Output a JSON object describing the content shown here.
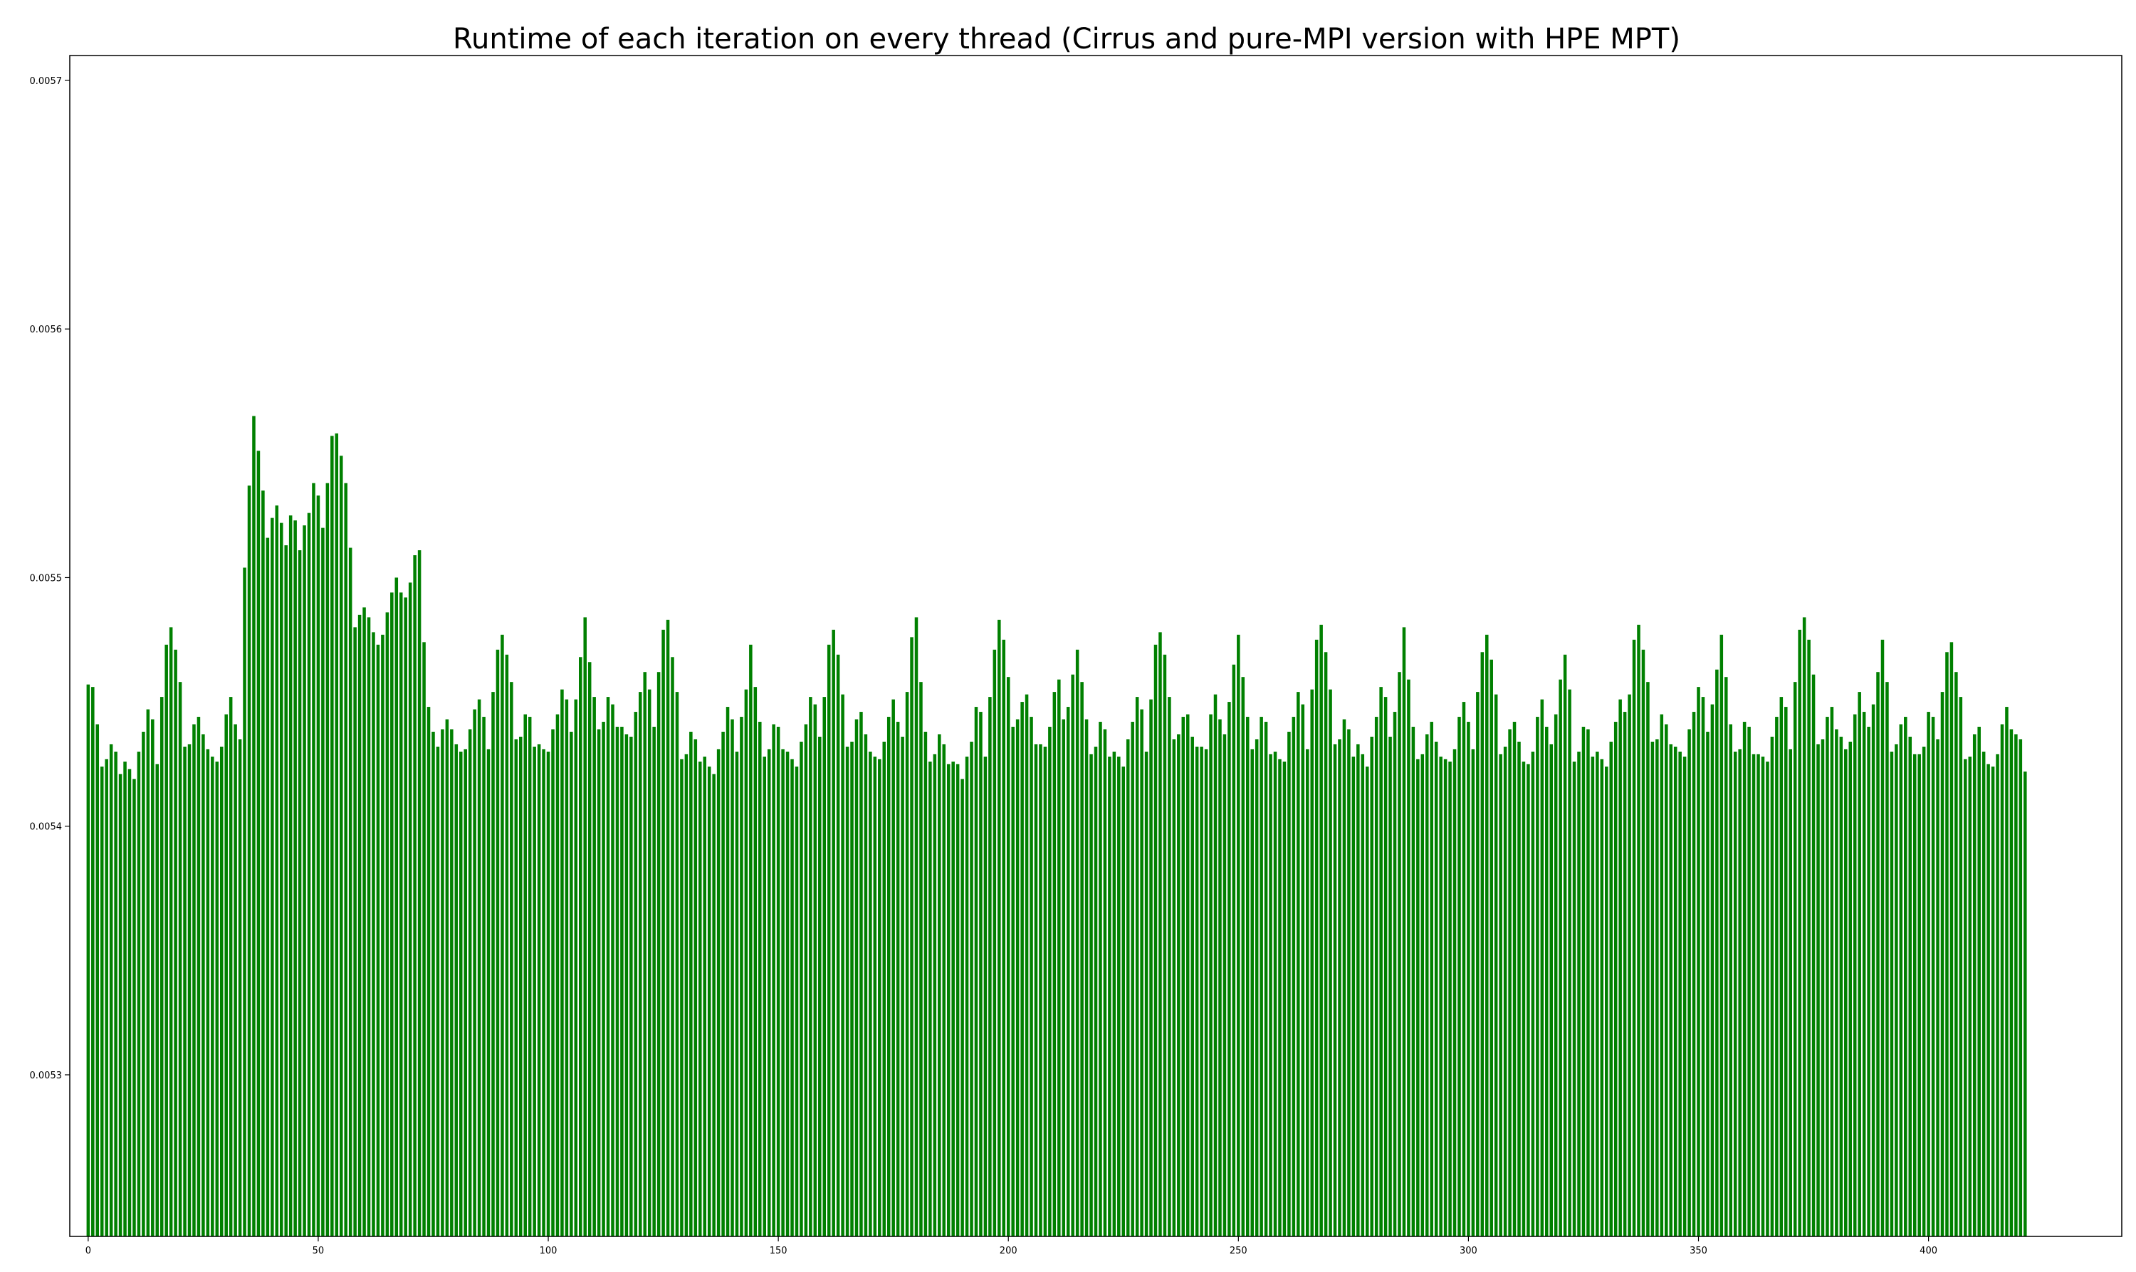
{
  "chart_data": {
    "type": "bar",
    "title": "Runtime of each iteration on every thread (Cirrus and pure-MPI version with HPE MPT)",
    "xlabel": "",
    "ylabel": "",
    "bar_color": "#008000",
    "grid": false,
    "xlim": [
      -4,
      442
    ],
    "ylim": [
      0.005235,
      0.00571
    ],
    "x_ticks": [
      0,
      50,
      100,
      150,
      200,
      250,
      300,
      350,
      400
    ],
    "x_tick_labels": [
      "0",
      "50",
      "100",
      "150",
      "200",
      "250",
      "300",
      "350",
      "400"
    ],
    "y_ticks": [
      0.0053,
      0.0054,
      0.0055,
      0.0056,
      0.0057
    ],
    "y_tick_labels": [
      "0.0053",
      "0.0054",
      "0.0055",
      "0.0056",
      "0.0057"
    ],
    "x_start": 0,
    "values": [
      0.005457,
      0.005456,
      0.005441,
      0.005424,
      0.005427,
      0.005433,
      0.00543,
      0.005421,
      0.005426,
      0.005423,
      0.005419,
      0.00543,
      0.005438,
      0.005447,
      0.005443,
      0.005425,
      0.005452,
      0.005473,
      0.00548,
      0.005471,
      0.005458,
      0.005432,
      0.005433,
      0.005441,
      0.005444,
      0.005437,
      0.005431,
      0.005428,
      0.005426,
      0.005432,
      0.005445,
      0.005452,
      0.005441,
      0.005435,
      0.005504,
      0.005537,
      0.005565,
      0.005551,
      0.005535,
      0.005516,
      0.005524,
      0.005529,
      0.005522,
      0.005513,
      0.005525,
      0.005523,
      0.005511,
      0.005521,
      0.005526,
      0.005538,
      0.005533,
      0.00552,
      0.005538,
      0.005557,
      0.005558,
      0.005549,
      0.005538,
      0.005512,
      0.00548,
      0.005485,
      0.005488,
      0.005484,
      0.005478,
      0.005473,
      0.005477,
      0.005486,
      0.005494,
      0.0055,
      0.005494,
      0.005492,
      0.005498,
      0.005509,
      0.005511,
      0.005474,
      0.005448,
      0.005438,
      0.005432,
      0.005439,
      0.005443,
      0.005439,
      0.005433,
      0.00543,
      0.005431,
      0.005439,
      0.005447,
      0.005451,
      0.005444,
      0.005431,
      0.005454,
      0.005471,
      0.005477,
      0.005469,
      0.005458,
      0.005435,
      0.005436,
      0.005445,
      0.005444,
      0.005432,
      0.005433,
      0.005431,
      0.00543,
      0.005439,
      0.005445,
      0.005455,
      0.005451,
      0.005438,
      0.005451,
      0.005468,
      0.005484,
      0.005466,
      0.005452,
      0.005439,
      0.005442,
      0.005452,
      0.005449,
      0.00544,
      0.00544,
      0.005437,
      0.005436,
      0.005446,
      0.005454,
      0.005462,
      0.005455,
      0.00544,
      0.005462,
      0.005479,
      0.005483,
      0.005468,
      0.005454,
      0.005427,
      0.005429,
      0.005438,
      0.005435,
      0.005426,
      0.005428,
      0.005424,
      0.005421,
      0.005431,
      0.005438,
      0.005448,
      0.005443,
      0.00543,
      0.005444,
      0.005455,
      0.005473,
      0.005456,
      0.005442,
      0.005428,
      0.005431,
      0.005441,
      0.00544,
      0.005431,
      0.00543,
      0.005427,
      0.005424,
      0.005434,
      0.005441,
      0.005452,
      0.005449,
      0.005436,
      0.005452,
      0.005473,
      0.005479,
      0.005469,
      0.005453,
      0.005432,
      0.005434,
      0.005443,
      0.005446,
      0.005437,
      0.00543,
      0.005428,
      0.005427,
      0.005434,
      0.005444,
      0.005451,
      0.005442,
      0.005436,
      0.005454,
      0.005476,
      0.005484,
      0.005458,
      0.005438,
      0.005426,
      0.005429,
      0.005437,
      0.005433,
      0.005425,
      0.005426,
      0.005425,
      0.005419,
      0.005428,
      0.005434,
      0.005448,
      0.005446,
      0.005428,
      0.005452,
      0.005471,
      0.005483,
      0.005475,
      0.00546,
      0.00544,
      0.005443,
      0.00545,
      0.005453,
      0.005444,
      0.005433,
      0.005433,
      0.005432,
      0.00544,
      0.005454,
      0.005459,
      0.005443,
      0.005448,
      0.005461,
      0.005471,
      0.005458,
      0.005443,
      0.005429,
      0.005432,
      0.005442,
      0.005439,
      0.005428,
      0.00543,
      0.005428,
      0.005424,
      0.005435,
      0.005442,
      0.005452,
      0.005447,
      0.00543,
      0.005451,
      0.005473,
      0.005478,
      0.005469,
      0.005452,
      0.005435,
      0.005437,
      0.005444,
      0.005445,
      0.005436,
      0.005432,
      0.005432,
      0.005431,
      0.005445,
      0.005453,
      0.005443,
      0.005437,
      0.00545,
      0.005465,
      0.005477,
      0.00546,
      0.005444,
      0.005431,
      0.005435,
      0.005444,
      0.005442,
      0.005429,
      0.00543,
      0.005427,
      0.005426,
      0.005438,
      0.005444,
      0.005454,
      0.005449,
      0.005431,
      0.005455,
      0.005475,
      0.005481,
      0.00547,
      0.005455,
      0.005433,
      0.005435,
      0.005443,
      0.005439,
      0.005428,
      0.005433,
      0.005429,
      0.005424,
      0.005436,
      0.005444,
      0.005456,
      0.005452,
      0.005436,
      0.005446,
      0.005462,
      0.00548,
      0.005459,
      0.00544,
      0.005427,
      0.005429,
      0.005437,
      0.005442,
      0.005434,
      0.005428,
      0.005427,
      0.005426,
      0.005431,
      0.005444,
      0.00545,
      0.005442,
      0.005431,
      0.005454,
      0.00547,
      0.005477,
      0.005467,
      0.005453,
      0.005429,
      0.005432,
      0.005439,
      0.005442,
      0.005434,
      0.005426,
      0.005425,
      0.00543,
      0.005444,
      0.005451,
      0.00544,
      0.005433,
      0.005445,
      0.005459,
      0.005469,
      0.005455,
      0.005426,
      0.00543,
      0.00544,
      0.005439,
      0.005428,
      0.00543,
      0.005427,
      0.005424,
      0.005434,
      0.005442,
      0.005451,
      0.005446,
      0.005453,
      0.005475,
      0.005481,
      0.005471,
      0.005458,
      0.005434,
      0.005435,
      0.005445,
      0.005441,
      0.005433,
      0.005432,
      0.00543,
      0.005428,
      0.005439,
      0.005446,
      0.005456,
      0.005452,
      0.005438,
      0.005449,
      0.005463,
      0.005477,
      0.00546,
      0.005441,
      0.00543,
      0.005431,
      0.005442,
      0.00544,
      0.005429,
      0.005429,
      0.005428,
      0.005426,
      0.005436,
      0.005444,
      0.005452,
      0.005448,
      0.005431,
      0.005458,
      0.005479,
      0.005484,
      0.005475,
      0.005461,
      0.005433,
      0.005435,
      0.005444,
      0.005448,
      0.005439,
      0.005436,
      0.005431,
      0.005434,
      0.005445,
      0.005454,
      0.005446,
      0.00544,
      0.005449,
      0.005462,
      0.005475,
      0.005458,
      0.00543,
      0.005433,
      0.005441,
      0.005444,
      0.005436,
      0.005429,
      0.005429,
      0.005432,
      0.005446,
      0.005444,
      0.005435,
      0.005454,
      0.00547,
      0.005474,
      0.005462,
      0.005452,
      0.005427,
      0.005428,
      0.005437,
      0.00544,
      0.00543,
      0.005425,
      0.005424,
      0.005429,
      0.005441,
      0.005448,
      0.005439,
      0.005437,
      0.005435,
      0.005422
    ]
  }
}
